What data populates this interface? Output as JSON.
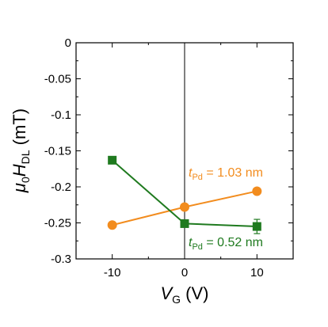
{
  "chart_data": {
    "type": "scatter",
    "title": "",
    "xlabel": {
      "symbol": "V",
      "subscript": "G",
      "unit": " (V)"
    },
    "ylabel": {
      "prefix": "μ",
      "prefix_sub": "0",
      "symbol": "H",
      "subscript": "DL",
      "unit": " (mT)"
    },
    "xlim": [
      -15,
      15
    ],
    "ylim": [
      -0.3,
      0
    ],
    "x_ticks": [
      -10,
      0,
      10
    ],
    "x_tick_labels": [
      "-10",
      "0",
      "10"
    ],
    "y_ticks": [
      0,
      -0.05,
      -0.1,
      -0.15,
      -0.2,
      -0.25,
      -0.3
    ],
    "y_tick_labels": [
      "0",
      "-0.05",
      "-0.1",
      "-0.15",
      "-0.2",
      "-0.25",
      "-0.3"
    ],
    "grid": false,
    "reference_line_x": 0,
    "series": [
      {
        "name": "t_Pd = 1.03 nm",
        "label": {
          "symbol": "t",
          "subscript": "Pd",
          "text": " = 1.03 nm"
        },
        "color": "#f28c1e",
        "marker": "circle",
        "x": [
          -10,
          0,
          10
        ],
        "y": [
          -0.253,
          -0.228,
          -0.206
        ]
      },
      {
        "name": "t_Pd = 0.52 nm",
        "label": {
          "symbol": "t",
          "subscript": "Pd",
          "text": " = 0.52 nm"
        },
        "color": "#1f7a1f",
        "marker": "square",
        "x": [
          -10,
          0,
          10
        ],
        "y": [
          -0.163,
          -0.251,
          -0.255
        ]
      }
    ]
  }
}
